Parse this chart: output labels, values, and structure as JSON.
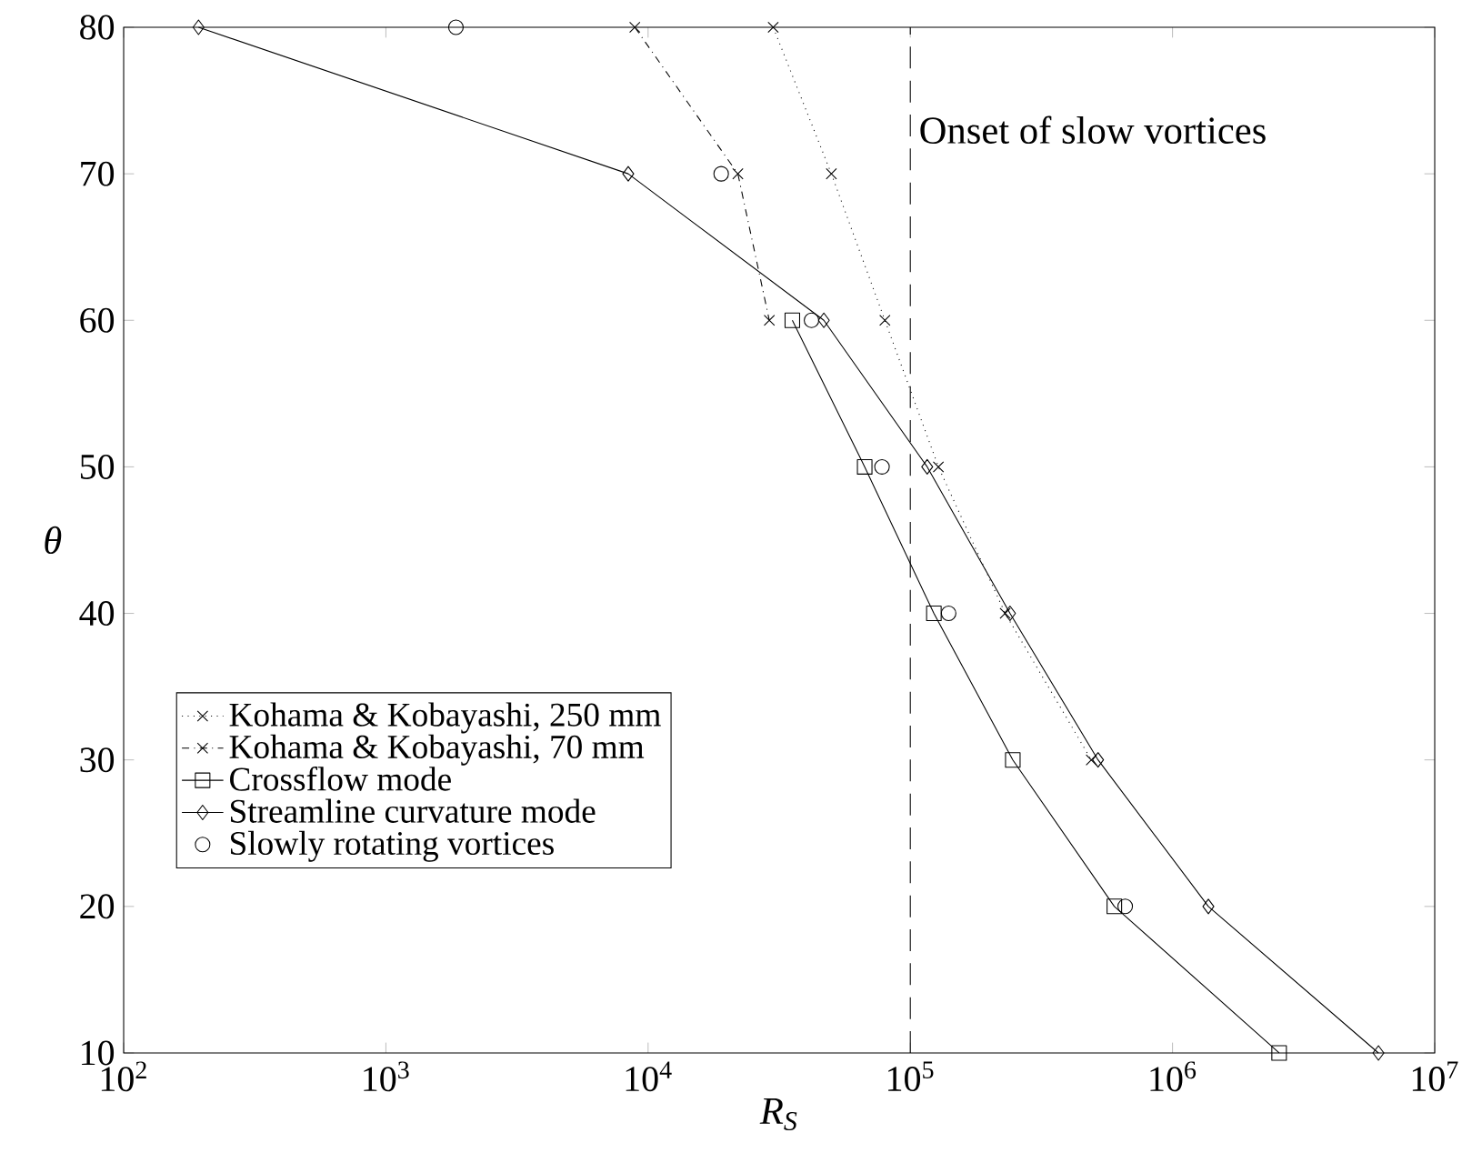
{
  "chart_data": {
    "type": "line",
    "xlabel": "R$_{S}$",
    "ylabel": "θ",
    "log": "x",
    "grid": false,
    "legend": "bottom left",
    "xlim": [
      100,
      10000000
    ],
    "ylim": [
      10,
      80
    ],
    "xticks": [
      {
        "value": 100,
        "label": "10$^{2}$"
      },
      {
        "value": 1000,
        "label": "10$^{3}$"
      },
      {
        "value": 10000,
        "label": "10$^{4}$"
      },
      {
        "value": 100000,
        "label": "10$^{5}$"
      },
      {
        "value": 1000000,
        "label": "10$^{6}$"
      },
      {
        "value": 10000000,
        "label": "10$^{7}$"
      }
    ],
    "yticks": [
      10,
      20,
      30,
      40,
      50,
      60,
      70,
      80
    ],
    "ref_lines": [
      {
        "axis": "x",
        "value": 100000,
        "label": "Onset of slow vortices",
        "line_style": "dashed",
        "color": "#000000"
      }
    ],
    "series": [
      {
        "name": "Kohama & Kobayashi, 250 mm",
        "color": "#000000",
        "marker": "cross",
        "line_style": "dotted",
        "x": [
          30000,
          50000,
          80000,
          128000,
          230000,
          490000
        ],
        "values": [
          80,
          70,
          60,
          50,
          40,
          30
        ]
      },
      {
        "name": "Kohama & Kobayashi, 70 mm",
        "color": "#000000",
        "marker": "cross",
        "line_style": "dashdot",
        "x": [
          8900,
          22000,
          29000
        ],
        "values": [
          80,
          70,
          60
        ]
      },
      {
        "name": "Crossflow mode",
        "color": "#000000",
        "marker": "square",
        "line_style": "solid",
        "x": [
          35500,
          67000,
          123000,
          246000,
          600000,
          2550000
        ],
        "values": [
          60,
          50,
          40,
          30,
          20,
          10
        ]
      },
      {
        "name": "Streamline curvature mode",
        "color": "#000000",
        "marker": "diamond",
        "line_style": "solid",
        "x": [
          193,
          8400,
          46800,
          116000,
          240000,
          520000,
          1370000,
          6100000
        ],
        "values": [
          80,
          70,
          60,
          50,
          40,
          30,
          20,
          10
        ]
      },
      {
        "name": "Slowly rotating vortices",
        "type": "scatter",
        "color": "#000000",
        "marker": "circle",
        "x": [
          1850,
          19000,
          42000,
          78000,
          140000,
          660000
        ],
        "values": [
          80,
          70,
          60,
          50,
          40,
          20
        ]
      }
    ]
  }
}
